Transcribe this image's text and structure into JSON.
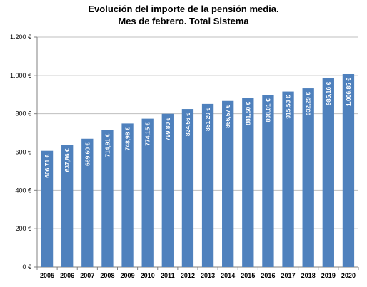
{
  "chart_data": {
    "type": "bar",
    "title": "Evolución del importe de la pensión media.",
    "subtitle": "Mes de febrero. Total Sistema",
    "xlabel": "",
    "ylabel": "",
    "categories": [
      "2005",
      "2006",
      "2007",
      "2008",
      "2009",
      "2010",
      "2011",
      "2012",
      "2013",
      "2014",
      "2015",
      "2016",
      "2017",
      "2018",
      "2019",
      "2020"
    ],
    "values": [
      606.71,
      637.86,
      669.6,
      714.91,
      748.98,
      774.15,
      799.8,
      824.56,
      851.2,
      866.57,
      881.5,
      898.01,
      915.53,
      932.29,
      985.16,
      1006.85
    ],
    "data_labels": [
      "606,71 €",
      "637,86 €",
      "669,60 €",
      "714,91 €",
      "748,98 €",
      "774,15 €",
      "799,80 €",
      "824,56 €",
      "851,20 €",
      "866,57 €",
      "881,50 €",
      "898,01 €",
      "915,53 €",
      "932,29 €",
      "985,16 €",
      "1.006,85 €"
    ],
    "ylim": [
      0,
      1200
    ],
    "y_ticks": [
      0,
      200,
      400,
      600,
      800,
      1000,
      1200
    ],
    "y_tick_labels": [
      "0 €",
      "200 €",
      "400 €",
      "600 €",
      "800 €",
      "1.000 €",
      "1.200 €"
    ],
    "grid": true,
    "bar_color": "#4F81BD"
  }
}
